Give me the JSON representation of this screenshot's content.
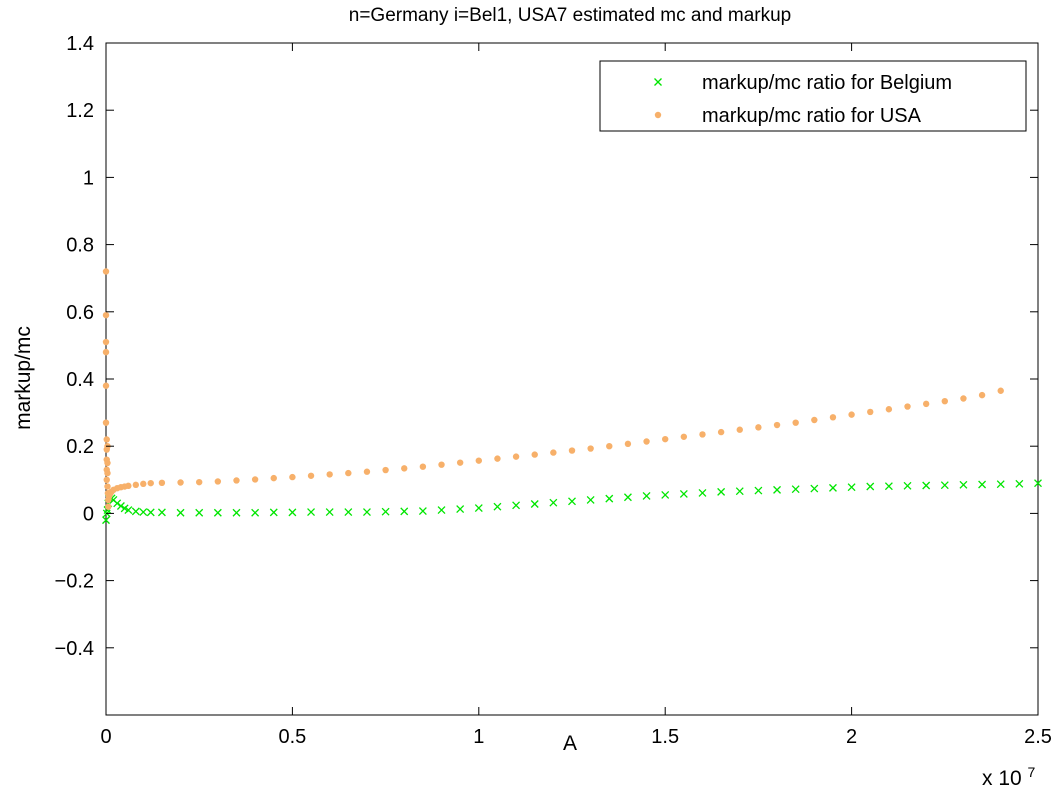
{
  "chart_data": {
    "type": "scatter",
    "title": "n=Germany i=Bel1, USA7 estimated mc and markup",
    "xlabel": "A",
    "ylabel": "markup/mc",
    "x_exponent_label": "x 10",
    "x_exponent": "7",
    "xlim": [
      0,
      2.5
    ],
    "ylim": [
      -0.6,
      1.4
    ],
    "xticks": [
      "0",
      "0.5",
      "1",
      "1.5",
      "2",
      "2.5"
    ],
    "yticks": [
      "−0.4",
      "−0.2",
      "0",
      "0.2",
      "0.4",
      "0.6",
      "0.8",
      "1",
      "1.2",
      "1.4"
    ],
    "ytick_values": [
      -0.4,
      -0.2,
      0,
      0.2,
      0.4,
      0.6,
      0.8,
      1,
      1.2,
      1.4
    ],
    "xtick_values": [
      0,
      0.5,
      1,
      1.5,
      2,
      2.5
    ],
    "grid": false,
    "legend_position": "top-right",
    "series": [
      {
        "name": "markup/mc ratio for Belgium",
        "marker": "x",
        "color": "#00e600",
        "x": [
          0.0,
          0.002,
          0.004,
          0.006,
          0.008,
          0.01,
          0.015,
          0.02,
          0.03,
          0.04,
          0.05,
          0.06,
          0.08,
          0.1,
          0.12,
          0.15,
          0.2,
          0.25,
          0.3,
          0.35,
          0.4,
          0.45,
          0.5,
          0.55,
          0.6,
          0.65,
          0.7,
          0.75,
          0.8,
          0.85,
          0.9,
          0.95,
          1.0,
          1.05,
          1.1,
          1.15,
          1.2,
          1.25,
          1.3,
          1.35,
          1.4,
          1.45,
          1.5,
          1.55,
          1.6,
          1.65,
          1.7,
          1.75,
          1.8,
          1.85,
          1.9,
          1.95,
          2.0,
          2.05,
          2.1,
          2.15,
          2.2,
          2.25,
          2.3,
          2.35,
          2.4,
          2.45,
          2.5
        ],
        "y": [
          -0.02,
          0.0,
          0.01,
          0.03,
          0.045,
          0.05,
          0.045,
          0.04,
          0.03,
          0.022,
          0.015,
          0.01,
          0.006,
          0.004,
          0.003,
          0.003,
          0.002,
          0.002,
          0.002,
          0.002,
          0.002,
          0.003,
          0.003,
          0.004,
          0.004,
          0.004,
          0.004,
          0.005,
          0.006,
          0.007,
          0.01,
          0.013,
          0.016,
          0.02,
          0.024,
          0.028,
          0.032,
          0.036,
          0.04,
          0.044,
          0.048,
          0.052,
          0.055,
          0.058,
          0.061,
          0.064,
          0.066,
          0.068,
          0.07,
          0.072,
          0.074,
          0.076,
          0.078,
          0.08,
          0.081,
          0.082,
          0.083,
          0.084,
          0.085,
          0.086,
          0.087,
          0.088,
          0.09
        ]
      },
      {
        "name": "markup/mc ratio for USA",
        "marker": "o",
        "color": "#f7b06a",
        "x": [
          0.0,
          0.0,
          0.0,
          0.0,
          0.0,
          0.0,
          0.002,
          0.002,
          0.002,
          0.002,
          0.002,
          0.004,
          0.004,
          0.004,
          0.004,
          0.005,
          0.006,
          0.006,
          0.008,
          0.01,
          0.012,
          0.015,
          0.02,
          0.03,
          0.04,
          0.05,
          0.06,
          0.08,
          0.1,
          0.12,
          0.15,
          0.2,
          0.25,
          0.3,
          0.35,
          0.4,
          0.45,
          0.5,
          0.55,
          0.6,
          0.65,
          0.7,
          0.75,
          0.8,
          0.85,
          0.9,
          0.95,
          1.0,
          1.05,
          1.1,
          1.15,
          1.2,
          1.25,
          1.3,
          1.35,
          1.4,
          1.45,
          1.5,
          1.55,
          1.6,
          1.65,
          1.7,
          1.75,
          1.8,
          1.85,
          1.9,
          1.95,
          2.0,
          2.05,
          2.1,
          2.15,
          2.2,
          2.25,
          2.3,
          2.35,
          2.4
        ],
        "y": [
          0.72,
          0.59,
          0.51,
          0.48,
          0.38,
          0.27,
          0.22,
          0.19,
          0.16,
          0.13,
          0.1,
          0.2,
          0.15,
          0.12,
          0.08,
          0.06,
          0.04,
          0.02,
          0.05,
          0.06,
          0.06,
          0.065,
          0.07,
          0.075,
          0.078,
          0.08,
          0.082,
          0.085,
          0.088,
          0.09,
          0.091,
          0.092,
          0.093,
          0.095,
          0.098,
          0.101,
          0.105,
          0.108,
          0.112,
          0.116,
          0.12,
          0.124,
          0.129,
          0.134,
          0.139,
          0.145,
          0.151,
          0.157,
          0.163,
          0.169,
          0.175,
          0.181,
          0.187,
          0.193,
          0.2,
          0.207,
          0.214,
          0.221,
          0.228,
          0.235,
          0.242,
          0.249,
          0.256,
          0.263,
          0.27,
          0.278,
          0.286,
          0.294,
          0.302,
          0.31,
          0.318,
          0.326,
          0.334,
          0.342,
          0.352,
          0.365
        ]
      }
    ]
  }
}
